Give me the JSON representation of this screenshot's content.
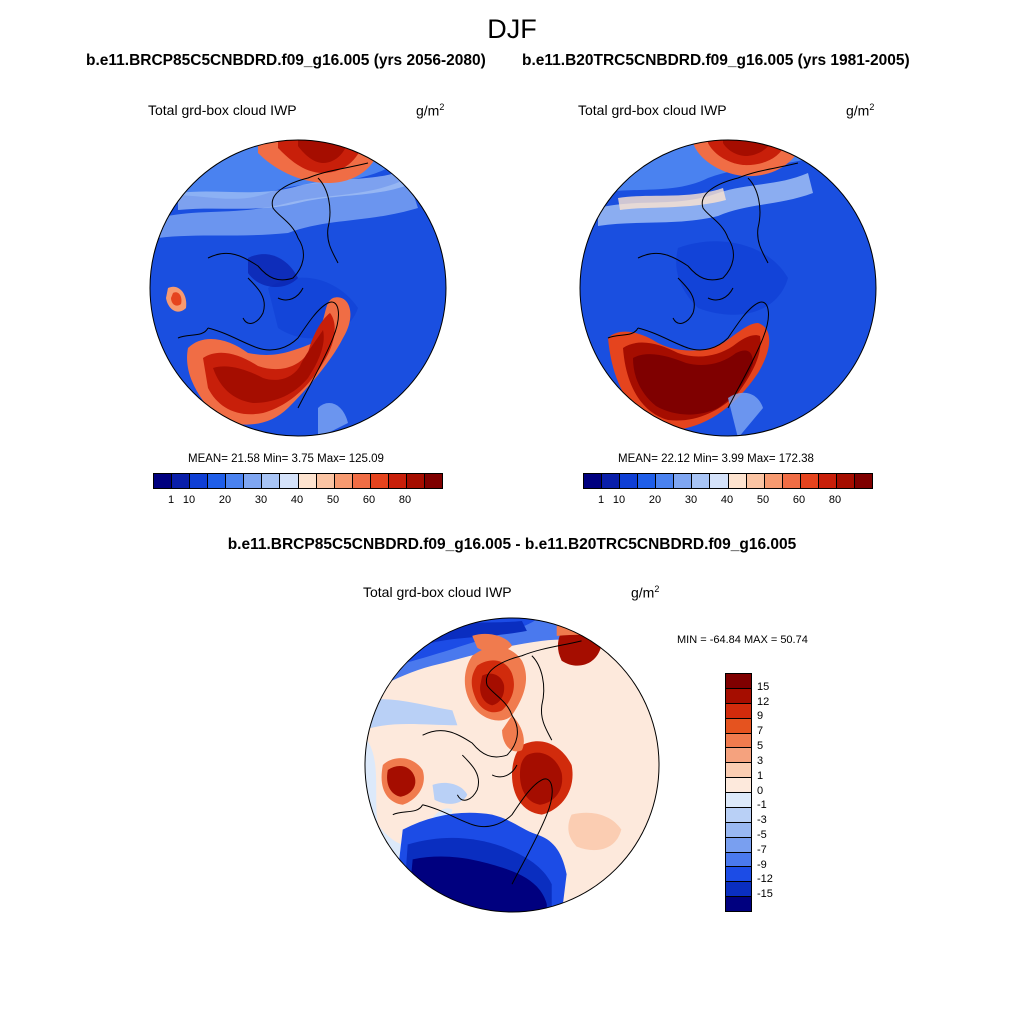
{
  "title": "DJF",
  "left": {
    "run_title": "b.e11.BRCP85C5CNBDRD.f09_g16.005 (yrs 2056-2080)",
    "var_label": "Total grd-box cloud IWP",
    "unit": "g/m",
    "unit_sup": "2",
    "stats": "MEAN=  21.58  Min=   3.75  Max= 125.09"
  },
  "right": {
    "run_title": "b.e11.B20TRC5CNBDRD.f09_g16.005 (yrs 1981-2005)",
    "var_label": "Total grd-box cloud IWP",
    "unit": "g/m",
    "unit_sup": "2",
    "stats": "MEAN=  22.12  Min=   3.99  Max= 172.38"
  },
  "diff": {
    "title": "b.e11.BRCP85C5CNBDRD.f09_g16.005 - b.e11.B20TRC5CNBDRD.f09_g16.005",
    "var_label": "Total grd-box cloud IWP",
    "unit": "g/m",
    "unit_sup": "2",
    "minmax": "MIN = -64.84 MAX =  50.74"
  },
  "colorbar": {
    "colors": [
      "#00007f",
      "#0a1faa",
      "#0f3fd4",
      "#1f5ee8",
      "#4a82f0",
      "#7fa6f2",
      "#a8c4f5",
      "#d4e2fa",
      "#fde3cf",
      "#fbc4a3",
      "#f79a70",
      "#f06d45",
      "#e5441e",
      "#c81f0a",
      "#a50d00",
      "#7f0000"
    ],
    "ticks": [
      {
        "label": "1",
        "index": 1
      },
      {
        "label": "10",
        "index": 2
      },
      {
        "label": "20",
        "index": 4
      },
      {
        "label": "30",
        "index": 6
      },
      {
        "label": "40",
        "index": 8
      },
      {
        "label": "50",
        "index": 10
      },
      {
        "label": "60",
        "index": 12
      },
      {
        "label": "80",
        "index": 14
      }
    ]
  },
  "diff_colorbar": {
    "colors": [
      "#7f0000",
      "#a50d00",
      "#d12b0c",
      "#e5531f",
      "#f07b4e",
      "#f5a27e",
      "#fbcdb2",
      "#fde9dc",
      "#dce9fa",
      "#b9d0f6",
      "#99b8f2",
      "#799ff0",
      "#4a79ee",
      "#1c4ce6",
      "#0a2ec0",
      "#00007f"
    ],
    "labels": [
      "15",
      "12",
      "9",
      "7",
      "5",
      "3",
      "1",
      "0",
      "-1",
      "-3",
      "-5",
      "-7",
      "-9",
      "-12",
      "-15"
    ]
  },
  "maps": {
    "left_map": "IWP polar map 2056-2080",
    "right_map": "IWP polar map 1981-2005",
    "diff_map": "IWP difference polar map"
  }
}
